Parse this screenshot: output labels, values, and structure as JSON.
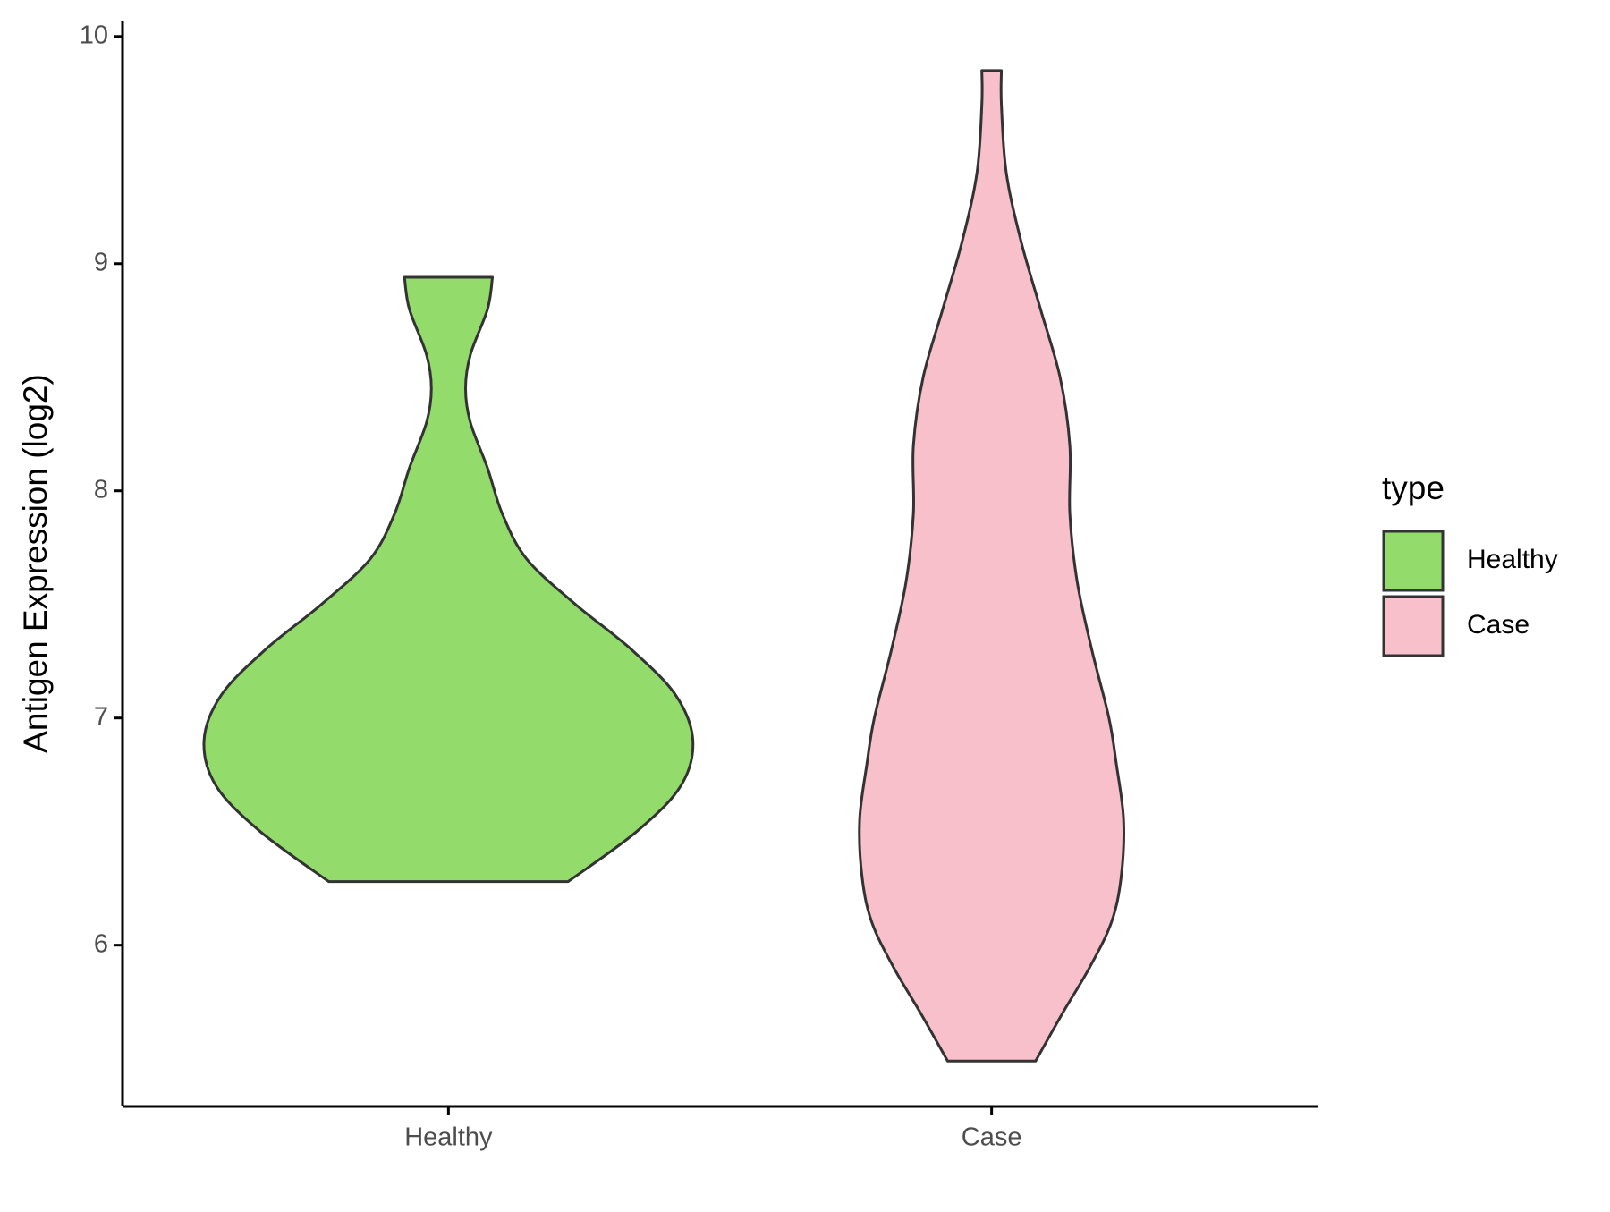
{
  "chart_data": {
    "type": "violin",
    "y_label": "Antigen Expression (log2)",
    "categories": [
      "Healthy",
      "Case"
    ],
    "ylim": [
      5.29,
      10.07
    ],
    "yticks": [
      6,
      7,
      8,
      9,
      10
    ],
    "legend_title": "type",
    "legend_position": "right",
    "series": [
      {
        "name": "Healthy",
        "color": "#93db6a",
        "y": [
          6.28,
          6.5,
          6.7,
          6.9,
          7.1,
          7.3,
          7.5,
          7.7,
          7.9,
          8.1,
          8.3,
          8.45,
          8.6,
          8.8,
          8.94
        ],
        "density": [
          0.49,
          0.77,
          0.95,
          1.0,
          0.93,
          0.75,
          0.52,
          0.32,
          0.22,
          0.16,
          0.09,
          0.07,
          0.09,
          0.16,
          0.18
        ]
      },
      {
        "name": "Case",
        "color": "#f7c0cb",
        "y": [
          5.49,
          5.7,
          5.9,
          6.1,
          6.3,
          6.55,
          6.8,
          7.0,
          7.3,
          7.6,
          7.9,
          8.2,
          8.5,
          8.8,
          9.1,
          9.4,
          9.7,
          9.85
        ],
        "density": [
          0.18,
          0.29,
          0.4,
          0.49,
          0.53,
          0.54,
          0.51,
          0.48,
          0.41,
          0.35,
          0.32,
          0.32,
          0.28,
          0.2,
          0.12,
          0.06,
          0.04,
          0.04
        ]
      }
    ]
  }
}
